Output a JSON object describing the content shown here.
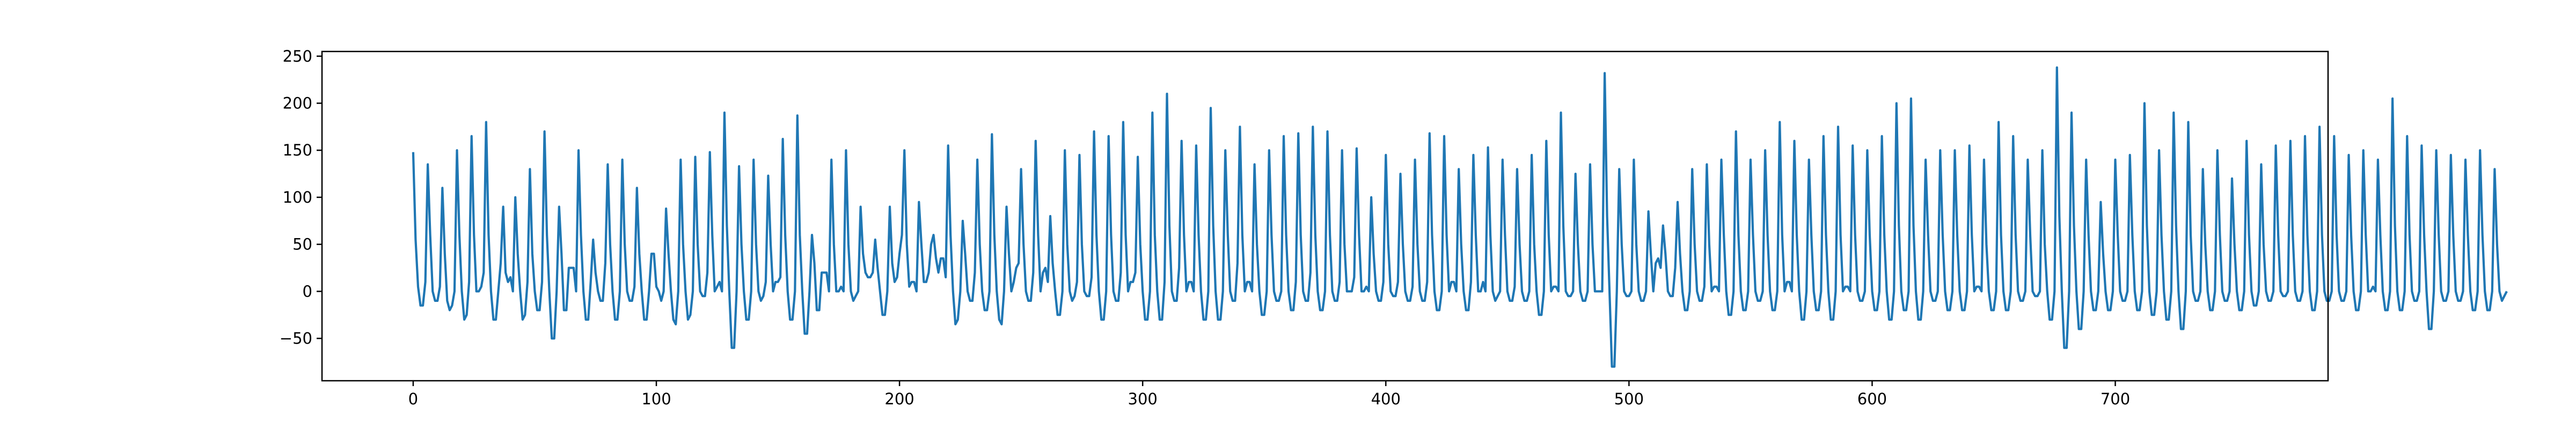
{
  "chart_data": {
    "type": "line",
    "title": "",
    "xlabel": "",
    "ylabel": "",
    "xlim": [
      -37.5,
      787.5
    ],
    "ylim": [
      -95,
      255
    ],
    "xticks": [
      0,
      100,
      200,
      300,
      400,
      500,
      600,
      700
    ],
    "yticks": [
      -50,
      0,
      50,
      100,
      150,
      200,
      250
    ],
    "xtick_labels": [
      "0",
      "100",
      "200",
      "300",
      "400",
      "500",
      "600",
      "700"
    ],
    "ytick_labels": [
      "−50",
      "0",
      "50",
      "100",
      "150",
      "200",
      "250"
    ],
    "grid": false,
    "legend": "none",
    "line_color": "#1f77b4",
    "series": [
      {
        "x_start": 0,
        "x_step": 1,
        "values": [
          148,
          55,
          5,
          -15,
          -15,
          10,
          135,
          60,
          0,
          -10,
          -10,
          5,
          110,
          40,
          -10,
          -20,
          -15,
          0,
          150,
          60,
          0,
          -30,
          -25,
          10,
          165,
          60,
          0,
          0,
          5,
          20,
          180,
          60,
          0,
          -30,
          -30,
          0,
          30,
          90,
          20,
          10,
          15,
          0,
          100,
          40,
          0,
          -30,
          -25,
          10,
          130,
          40,
          0,
          -20,
          -20,
          10,
          170,
          60,
          0,
          -50,
          -50,
          0,
          90,
          40,
          -20,
          -20,
          25,
          25,
          25,
          0,
          150,
          60,
          0,
          -30,
          -30,
          10,
          55,
          20,
          0,
          -10,
          -10,
          30,
          135,
          50,
          0,
          -30,
          -30,
          0,
          140,
          50,
          0,
          -10,
          -10,
          5,
          110,
          40,
          0,
          -30,
          -30,
          0,
          40,
          40,
          5,
          0,
          -10,
          0,
          88,
          40,
          0,
          -30,
          -35,
          0,
          140,
          50,
          0,
          -30,
          -25,
          0,
          143,
          50,
          0,
          -5,
          -5,
          20,
          148,
          60,
          0,
          5,
          10,
          0,
          190,
          70,
          0,
          -60,
          -60,
          0,
          133,
          50,
          0,
          -30,
          -30,
          0,
          140,
          50,
          0,
          -10,
          -5,
          10,
          123,
          50,
          0,
          10,
          10,
          15,
          162,
          60,
          0,
          -30,
          -30,
          0,
          187,
          60,
          0,
          -45,
          -45,
          0,
          60,
          30,
          -20,
          -20,
          20,
          20,
          20,
          0,
          140,
          50,
          0,
          0,
          5,
          0,
          150,
          50,
          0,
          -10,
          -5,
          0,
          90,
          40,
          20,
          15,
          15,
          20,
          55,
          25,
          0,
          -25,
          -25,
          0,
          90,
          30,
          10,
          15,
          40,
          60,
          150,
          50,
          5,
          10,
          10,
          0,
          95,
          50,
          10,
          10,
          20,
          50,
          60,
          35,
          20,
          35,
          35,
          15,
          155,
          60,
          0,
          -35,
          -30,
          0,
          75,
          40,
          0,
          -10,
          -10,
          20,
          140,
          50,
          0,
          -20,
          -20,
          0,
          167,
          60,
          0,
          -30,
          -35,
          0,
          90,
          40,
          0,
          10,
          25,
          30,
          130,
          50,
          0,
          -10,
          -10,
          20,
          160,
          60,
          0,
          20,
          25,
          10,
          80,
          30,
          0,
          -25,
          -25,
          0,
          150,
          50,
          0,
          -10,
          -5,
          10,
          145,
          50,
          0,
          -5,
          -5,
          15,
          170,
          60,
          0,
          -30,
          -30,
          0,
          165,
          60,
          0,
          -10,
          -10,
          20,
          180,
          60,
          0,
          10,
          10,
          20,
          143,
          50,
          0,
          -30,
          -30,
          0,
          190,
          60,
          0,
          -30,
          -30,
          10,
          210,
          70,
          0,
          -10,
          -10,
          25,
          160,
          60,
          0,
          10,
          10,
          0,
          155,
          60,
          0,
          -30,
          -30,
          0,
          195,
          70,
          0,
          -30,
          -30,
          0,
          150,
          60,
          0,
          -10,
          -10,
          30,
          175,
          60,
          0,
          10,
          10,
          0,
          135,
          50,
          0,
          -25,
          -25,
          0,
          150,
          60,
          0,
          -10,
          -10,
          0,
          165,
          60,
          0,
          -20,
          -20,
          10,
          168,
          60,
          0,
          -10,
          -10,
          20,
          175,
          60,
          0,
          -20,
          -20,
          0,
          170,
          60,
          0,
          -10,
          -10,
          10,
          150,
          50,
          0,
          0,
          0,
          15,
          152,
          60,
          0,
          0,
          5,
          0,
          100,
          40,
          0,
          -10,
          -10,
          10,
          145,
          50,
          0,
          -5,
          -5,
          10,
          125,
          50,
          0,
          -10,
          -10,
          5,
          140,
          50,
          0,
          -10,
          -10,
          10,
          168,
          60,
          0,
          -20,
          -20,
          0,
          165,
          60,
          0,
          10,
          10,
          0,
          130,
          50,
          0,
          -20,
          -20,
          10,
          145,
          60,
          0,
          0,
          10,
          0,
          153,
          60,
          0,
          -10,
          -5,
          0,
          140,
          60,
          0,
          -10,
          -10,
          5,
          130,
          50,
          0,
          -10,
          -10,
          0,
          145,
          50,
          0,
          -25,
          -25,
          0,
          160,
          60,
          0,
          5,
          5,
          0,
          190,
          70,
          0,
          -5,
          -5,
          0,
          125,
          50,
          0,
          -10,
          -10,
          0,
          135,
          50,
          0,
          0,
          0,
          0,
          232,
          80,
          0,
          -80,
          -80,
          0,
          130,
          50,
          0,
          -5,
          -5,
          0,
          140,
          50,
          0,
          -10,
          -10,
          0,
          85,
          40,
          0,
          30,
          35,
          25,
          70,
          40,
          0,
          -5,
          -5,
          25,
          95,
          40,
          0,
          -20,
          -20,
          0,
          130,
          50,
          0,
          -10,
          -10,
          5,
          135,
          50,
          0,
          5,
          5,
          0,
          140,
          60,
          0,
          -25,
          -25,
          0,
          170,
          60,
          0,
          -20,
          -20,
          0,
          140,
          60,
          0,
          -10,
          -10,
          0,
          150,
          60,
          0,
          -20,
          -20,
          0,
          180,
          60,
          0,
          10,
          10,
          0,
          160,
          60,
          0,
          -30,
          -30,
          0,
          140,
          60,
          0,
          -20,
          -20,
          0,
          165,
          60,
          0,
          -30,
          -30,
          0,
          175,
          60,
          0,
          5,
          5,
          0,
          155,
          60,
          0,
          -10,
          -10,
          0,
          150,
          60,
          0,
          -20,
          -20,
          0,
          165,
          60,
          0,
          -30,
          -30,
          0,
          200,
          70,
          0,
          -20,
          -20,
          0,
          205,
          70,
          0,
          -30,
          -30,
          0,
          140,
          60,
          0,
          -10,
          -10,
          0,
          150,
          60,
          0,
          -20,
          -20,
          0,
          150,
          60,
          0,
          -20,
          -20,
          0,
          155,
          60,
          0,
          5,
          5,
          0,
          140,
          50,
          0,
          -20,
          -20,
          0,
          180,
          60,
          0,
          -20,
          -20,
          0,
          165,
          60,
          0,
          -10,
          -10,
          0,
          140,
          60,
          0,
          -5,
          -5,
          0,
          150,
          50,
          0,
          -30,
          -30,
          0,
          238,
          80,
          0,
          -60,
          -60,
          0,
          190,
          70,
          0,
          -40,
          -40,
          0,
          140,
          60,
          0,
          -20,
          -20,
          0,
          95,
          40,
          0,
          -20,
          -20,
          0,
          140,
          60,
          0,
          -10,
          -10,
          0,
          145,
          60,
          0,
          -20,
          -20,
          0,
          200,
          70,
          0,
          -25,
          -25,
          0,
          150,
          60,
          0,
          -30,
          -30,
          0,
          190,
          70,
          0,
          -40,
          -40,
          0,
          180,
          60,
          0,
          -10,
          -10,
          0,
          130,
          50,
          0,
          -20,
          -20,
          0,
          150,
          60,
          0,
          -10,
          -10,
          0,
          120,
          50,
          0,
          -20,
          -20,
          0,
          160,
          60,
          0,
          -15,
          -15,
          0,
          135,
          50,
          0,
          -10,
          -10,
          0,
          155,
          60,
          0,
          -5,
          -5,
          0,
          160,
          60,
          0,
          -10,
          -10,
          0,
          165,
          60,
          0,
          -20,
          -20,
          0,
          175,
          60,
          0,
          -10,
          -10,
          0,
          165,
          60,
          0,
          -10,
          -10,
          0,
          145,
          60,
          0,
          -20,
          -20,
          0,
          150,
          60,
          0,
          0,
          5,
          0,
          140,
          60,
          0,
          -20,
          -20,
          0,
          205,
          70,
          0,
          -20,
          -20,
          0,
          165,
          60,
          0,
          -10,
          -10,
          0,
          155,
          60,
          0,
          -40,
          -40,
          0,
          150,
          60,
          0,
          -10,
          -10,
          0,
          145,
          60,
          0,
          -10,
          -10,
          0,
          140,
          60,
          0,
          -20,
          -20,
          0,
          150,
          60,
          0,
          -20,
          -20,
          0,
          130,
          50,
          0,
          -10,
          -5,
          0
        ]
      }
    ]
  }
}
